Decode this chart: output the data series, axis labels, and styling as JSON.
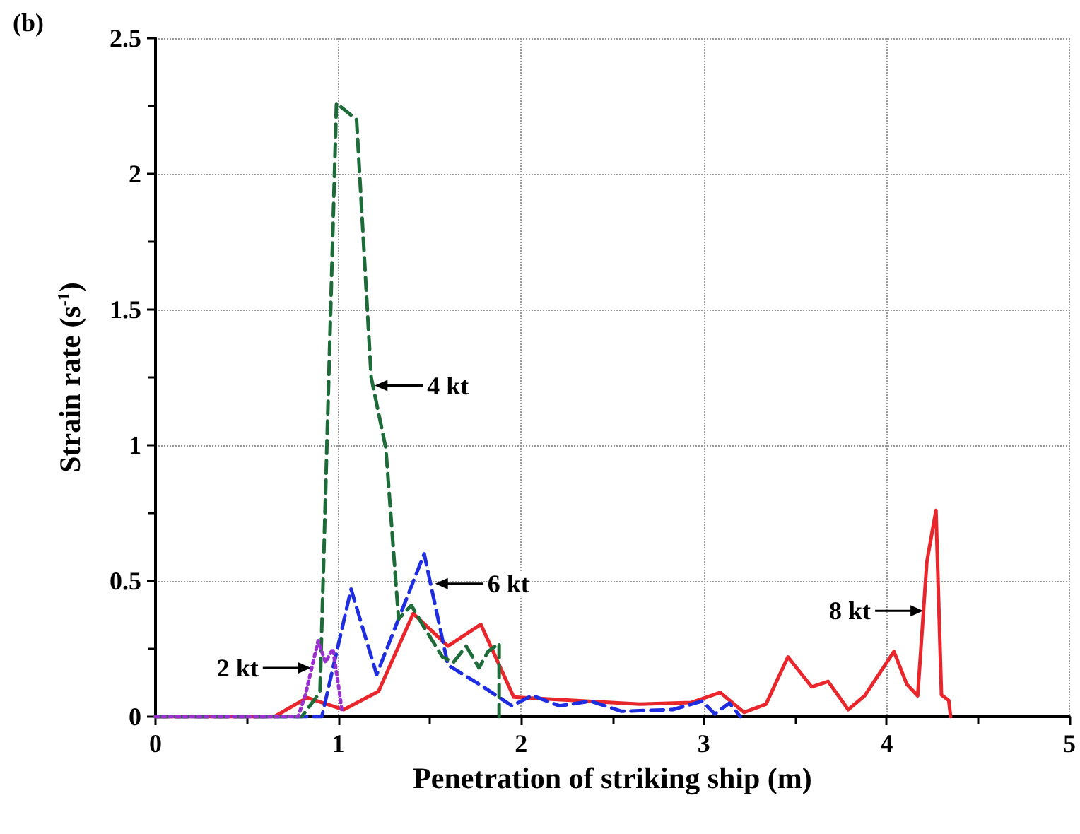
{
  "chart_data": {
    "type": "line",
    "title": "(b)",
    "xlabel": "Penetration of striking ship (m)",
    "ylabel": "Strain rate (s$^{-1}$)",
    "xlim": [
      0,
      5
    ],
    "xticks": [
      0,
      1,
      2,
      3,
      4,
      5
    ],
    "ylim": [
      0,
      2.5
    ],
    "yticks": [
      0,
      0.5,
      1,
      1.5,
      2,
      2.5
    ],
    "grid": true,
    "marker": "none",
    "series": [
      {
        "color": "#e8262b",
        "line_style": "solid",
        "x": [
          0,
          0.65,
          0.83,
          1.03,
          1.22,
          1.41,
          1.6,
          1.78,
          1.96,
          2.65,
          2.93,
          3.09,
          3.22,
          3.34,
          3.46,
          3.59,
          3.68,
          3.79,
          3.88,
          4.04,
          4.11,
          4.17,
          4.22,
          4.27,
          4.3,
          4.34,
          4.35
        ],
        "values": [
          0,
          0,
          0.07,
          0.026,
          0.093,
          0.38,
          0.26,
          0.34,
          0.072,
          0.046,
          0.052,
          0.089,
          0.016,
          0.046,
          0.22,
          0.11,
          0.13,
          0.026,
          0.077,
          0.24,
          0.12,
          0.077,
          0.57,
          0.76,
          0.08,
          0.06,
          0
        ]
      },
      {
        "color": "#1f2de0",
        "line_style": "dashed",
        "x": [
          0,
          0.91,
          1.07,
          1.21,
          1.47,
          1.6,
          1.77,
          1.95,
          2.06,
          2.21,
          2.38,
          2.55,
          2.83,
          2.99,
          3.06,
          3.14,
          3.2
        ],
        "values": [
          0,
          0,
          0.47,
          0.155,
          0.6,
          0.19,
          0.12,
          0.04,
          0.078,
          0.04,
          0.057,
          0.02,
          0.026,
          0.057,
          0.01,
          0.05,
          0
        ]
      },
      {
        "color": "#1e6b3a",
        "line_style": "dashed",
        "x": [
          0,
          0.8,
          0.9,
          0.99,
          1.1,
          1.18,
          1.26,
          1.33,
          1.4,
          1.46,
          1.57,
          1.63,
          1.7,
          1.77,
          1.82,
          1.88,
          1.88
        ],
        "values": [
          0,
          0,
          0.09,
          2.26,
          2.2,
          1.25,
          0.99,
          0.36,
          0.41,
          0.34,
          0.22,
          0.2,
          0.26,
          0.18,
          0.24,
          0.27,
          0
        ]
      },
      {
        "color": "#9b30d0",
        "line_style": "dotted",
        "x": [
          0,
          0.78,
          0.82,
          0.89,
          0.93,
          0.97,
          1.0,
          1.02
        ],
        "values": [
          0,
          0,
          0.08,
          0.28,
          0.2,
          0.25,
          0.12,
          0.02
        ]
      }
    ],
    "annotations": [
      {
        "text": "4 kt",
        "x": 1.2,
        "y": 1.22
      },
      {
        "text": "6 kt",
        "x": 1.53,
        "y": 0.49
      },
      {
        "text": "2 kt",
        "x": 0.85,
        "y": 0.18
      },
      {
        "text": "8 kt",
        "x": 4.2,
        "y": 0.39
      }
    ]
  }
}
